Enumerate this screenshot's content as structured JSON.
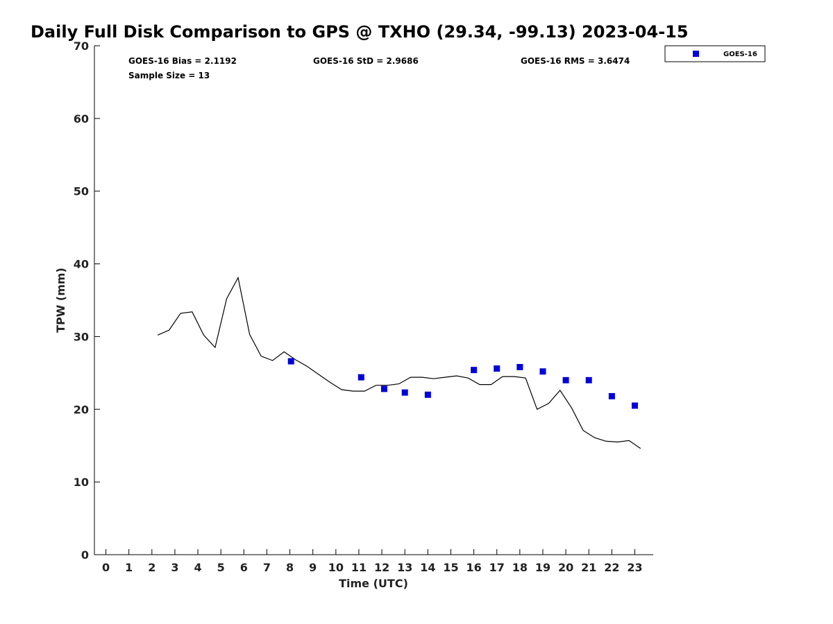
{
  "chart_data": {
    "type": "scatter",
    "title": "Daily Full Disk Comparison to GPS @ TXHO (29.34, -99.13) 2023-04-15",
    "xlabel": "Time (UTC)",
    "ylabel": "TPW (mm)",
    "xlim": [
      -0.5,
      23.8
    ],
    "ylim": [
      0,
      70
    ],
    "x_ticks": [
      0,
      1,
      2,
      3,
      4,
      5,
      6,
      7,
      8,
      9,
      10,
      11,
      12,
      13,
      14,
      15,
      16,
      17,
      18,
      19,
      20,
      21,
      22,
      23
    ],
    "y_ticks": [
      0,
      10,
      20,
      30,
      40,
      50,
      60,
      70
    ],
    "grid": false,
    "legend_position": "top-right, outside plot",
    "stats": {
      "bias": "GOES-16 Bias = 2.1192",
      "std": "GOES-16 StD = 2.9686",
      "rms": "GOES-16 RMS = 3.6474",
      "sample": "Sample Size = 13"
    },
    "series": [
      {
        "name": "GOES-16",
        "kind": "marker",
        "color": "#0000dd",
        "points": [
          [
            8.05,
            26.6
          ],
          [
            11.1,
            24.4
          ],
          [
            12.1,
            22.8
          ],
          [
            13.0,
            22.3
          ],
          [
            14.0,
            22.0
          ],
          [
            16.0,
            25.4
          ],
          [
            17.0,
            25.6
          ],
          [
            18.0,
            25.8
          ],
          [
            19.0,
            25.2
          ],
          [
            20.0,
            24.0
          ],
          [
            21.0,
            24.0
          ],
          [
            22.0,
            21.8
          ],
          [
            23.0,
            20.5
          ]
        ]
      },
      {
        "kind": "line",
        "color": "#000000",
        "points": [
          [
            2.25,
            30.2
          ],
          [
            2.75,
            30.9
          ],
          [
            3.25,
            33.2
          ],
          [
            3.75,
            33.4
          ],
          [
            4.25,
            30.2
          ],
          [
            4.75,
            28.5
          ],
          [
            5.25,
            35.2
          ],
          [
            5.75,
            38.1
          ],
          [
            6.25,
            30.3
          ],
          [
            6.75,
            27.3
          ],
          [
            7.25,
            26.7
          ],
          [
            7.75,
            27.9
          ],
          [
            8.25,
            26.8
          ],
          [
            8.75,
            25.9
          ],
          [
            9.25,
            24.8
          ],
          [
            9.75,
            23.7
          ],
          [
            10.25,
            22.7
          ],
          [
            10.75,
            22.5
          ],
          [
            11.25,
            22.5
          ],
          [
            11.75,
            23.3
          ],
          [
            12.25,
            23.3
          ],
          [
            12.75,
            23.5
          ],
          [
            13.25,
            24.4
          ],
          [
            13.75,
            24.4
          ],
          [
            14.25,
            24.2
          ],
          [
            14.75,
            24.4
          ],
          [
            15.25,
            24.6
          ],
          [
            15.75,
            24.3
          ],
          [
            16.25,
            23.4
          ],
          [
            16.75,
            23.4
          ],
          [
            17.25,
            24.5
          ],
          [
            17.75,
            24.5
          ],
          [
            18.25,
            24.3
          ],
          [
            18.75,
            20.0
          ],
          [
            19.25,
            20.8
          ],
          [
            19.75,
            22.6
          ],
          [
            20.25,
            20.2
          ],
          [
            20.75,
            17.1
          ],
          [
            21.25,
            16.1
          ],
          [
            21.75,
            15.6
          ],
          [
            22.25,
            15.5
          ],
          [
            22.75,
            15.7
          ],
          [
            23.25,
            14.6
          ]
        ]
      }
    ]
  }
}
